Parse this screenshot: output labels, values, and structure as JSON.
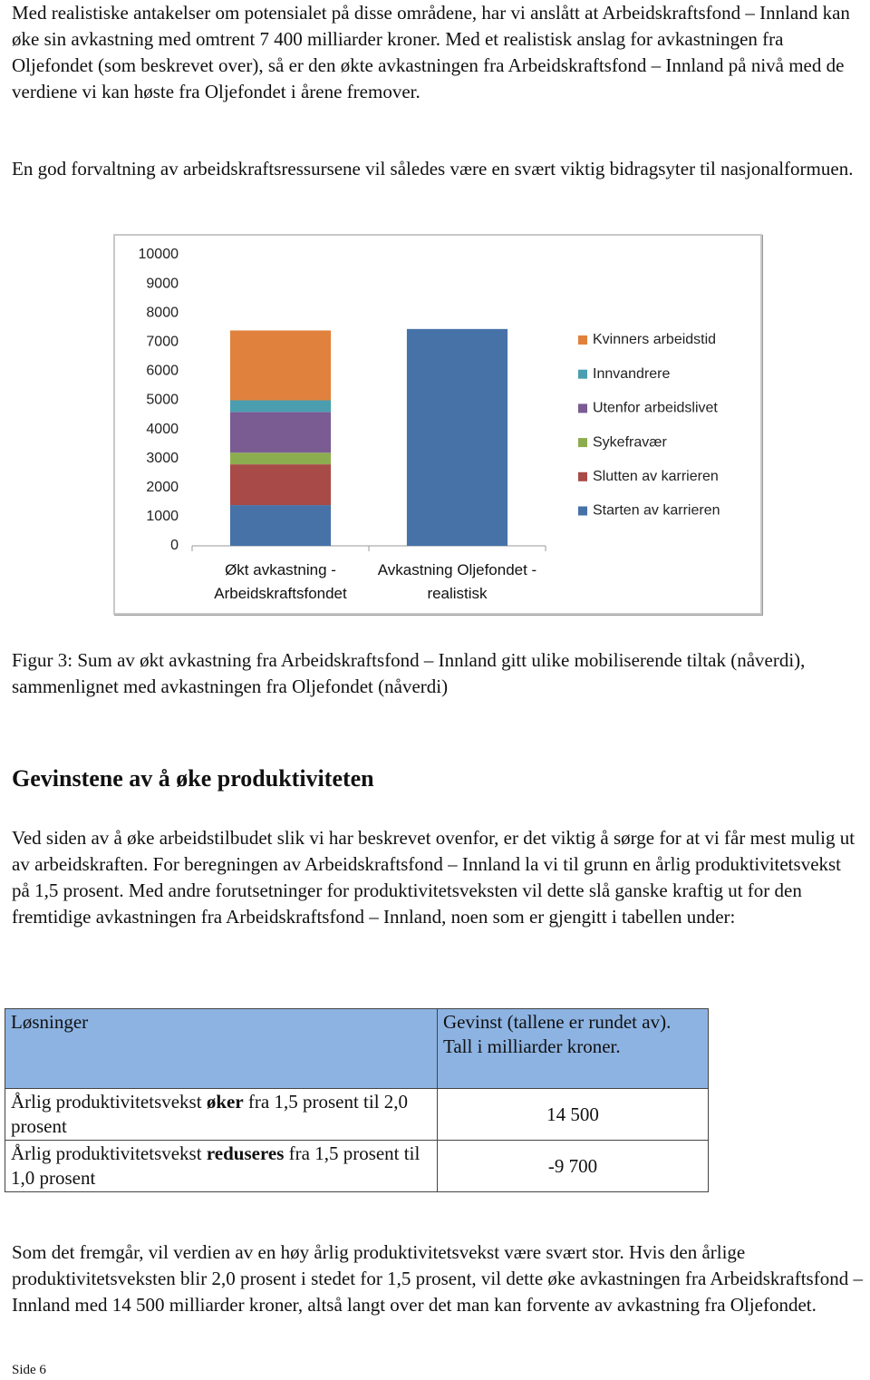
{
  "paragraphs_top": [
    "Med realistiske antakelser om potensialet på disse områdene, har vi anslått at Arbeidskraftsfond – Innland kan øke sin avkastning med omtrent 7 400 milliarder kroner. Med et realistisk anslag for avkastningen fra Oljefondet (som beskrevet over), så er den økte avkastningen fra Arbeidskraftsfond – Innland på nivå med de verdiene vi kan høste fra Oljefondet i årene fremover.",
    "En god forvaltning av arbeidskraftsressursene vil således være en svært viktig bidragsyter til nasjonalformuen."
  ],
  "chart_data": {
    "type": "stacked-bar",
    "categories": [
      "Økt avkastning - Arbeidskraftsfondet",
      "Avkastning Oljefondet - realistisk"
    ],
    "series": [
      {
        "name": "Starten av karrieren",
        "color": "#4672a8",
        "values": [
          1400,
          7450
        ]
      },
      {
        "name": "Slutten av karrieren",
        "color": "#a84a47",
        "values": [
          1400,
          0
        ]
      },
      {
        "name": "Sykefravær",
        "color": "#8cad4f",
        "values": [
          400,
          0
        ]
      },
      {
        "name": "Utenfor arbeidslivet",
        "color": "#7a5c93",
        "values": [
          1400,
          0
        ]
      },
      {
        "name": "Innvandrere",
        "color": "#4a9eb0",
        "values": [
          400,
          0
        ]
      },
      {
        "name": "Kvinners arbeidstid",
        "color": "#e0823d",
        "values": [
          2400,
          0
        ]
      }
    ],
    "ylim": [
      0,
      10000
    ],
    "yticks": [
      0,
      1000,
      2000,
      3000,
      4000,
      5000,
      6000,
      7000,
      8000,
      9000,
      10000
    ],
    "legend": "right"
  },
  "caption": "Figur 3: Sum av økt avkastning fra Arbeidskraftsfond – Innland gitt ulike mobiliserende tiltak (nåverdi), sammenlignet med avkastningen fra Oljefondet (nåverdi)",
  "heading": "Gevinstene av å øke produktiviteten",
  "paragraph_mid": "Ved siden av å øke arbeidstilbudet slik vi har beskrevet ovenfor, er det viktig å sørge for at vi får mest mulig ut av arbeidskraften. For beregningen av Arbeidskraftsfond – Innland la vi til grunn en årlig produktivitetsvekst på 1,5 prosent. Med andre forutsetninger for produktivitetsveksten vil dette slå ganske kraftig ut for den fremtidige avkastningen fra Arbeidskraftsfond – Innland, noen som er gjengitt i tabellen under:",
  "table": {
    "header": [
      "Løsninger",
      "Gevinst (tallene er rundet av). Tall i milliarder kroner."
    ],
    "rows": [
      [
        {
          "before": "Årlig produktivitetsvekst ",
          "bold": "øker",
          "after": " fra 1,5 prosent til 2,0 prosent"
        },
        "14 500"
      ],
      [
        {
          "before": "Årlig produktivitetsvekst ",
          "bold": "reduseres",
          "after": " fra 1,5 prosent til 1,0 prosent"
        },
        "-9 700"
      ]
    ]
  },
  "paragraph_bottom": "Som det fremgår, vil verdien av en høy årlig produktivitetsvekst være svært stor. Hvis den årlige produktivitetsveksten blir 2,0 prosent i stedet for 1,5 prosent, vil dette øke avkastningen fra Arbeidskraftsfond – Innland med 14 500 milliarder kroner, altså langt over det man kan forvente av avkastning fra Oljefondet.",
  "footer": "Side 6"
}
